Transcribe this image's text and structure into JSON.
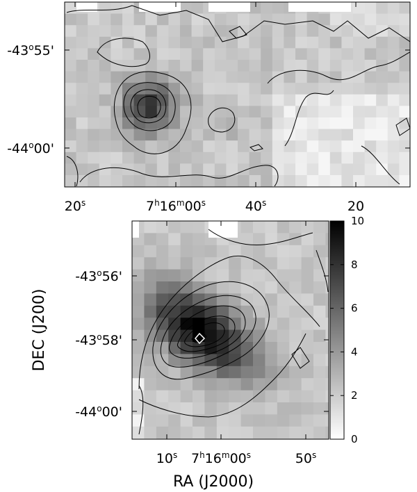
{
  "chart_data": [
    {
      "type": "heatmap",
      "panel": "top",
      "colormap": "grayscale (white = low, black = high)",
      "x_ticks": [
        {
          "main": "20",
          "sup": "s",
          "pre": "",
          "pre_sup": "",
          "mid": "",
          "mid_sup": ""
        },
        {
          "pre": "7",
          "pre_sup": "h",
          "mid": "16",
          "mid_sup": "m",
          "main": "00",
          "sup": "s"
        },
        {
          "main": "40",
          "sup": "s",
          "pre": "",
          "pre_sup": "",
          "mid": "",
          "mid_sup": ""
        },
        {
          "main": "20",
          "sup": "",
          "pre": "",
          "pre_sup": "",
          "mid": "",
          "mid_sup": ""
        }
      ],
      "y_ticks": [
        {
          "deg": "-43",
          "min": "55'"
        },
        {
          "deg": "-44",
          "min": "00'"
        }
      ],
      "peak": {
        "ra": "7h16m02s",
        "dec": "-43°57.5'"
      },
      "contour_levels": 4
    },
    {
      "type": "heatmap",
      "panel": "bottom",
      "colormap": "grayscale (white = low, black = high)",
      "xlabel": "RA (J2000)",
      "ylabel": "DEC (J200)",
      "x_ticks": [
        {
          "main": "10",
          "sup": "s",
          "pre": "",
          "pre_sup": "",
          "mid": "",
          "mid_sup": ""
        },
        {
          "pre": "7",
          "pre_sup": "h",
          "mid": "16",
          "mid_sup": "m",
          "main": "00",
          "sup": "s"
        },
        {
          "main": "50",
          "sup": "s",
          "pre": "",
          "pre_sup": "",
          "mid": "",
          "mid_sup": ""
        }
      ],
      "y_ticks": [
        {
          "deg": "-43",
          "min": "56'"
        },
        {
          "deg": "-43",
          "min": "58'"
        },
        {
          "deg": "-44",
          "min": "00'"
        }
      ],
      "colorbar": {
        "range": [
          0,
          10
        ],
        "ticks": [
          "0",
          "2",
          "4",
          "6",
          "8",
          "10"
        ]
      },
      "peak": {
        "ra": "7h16m05s",
        "dec": "-43°58'",
        "value": 10
      },
      "contour_levels": 7
    }
  ]
}
